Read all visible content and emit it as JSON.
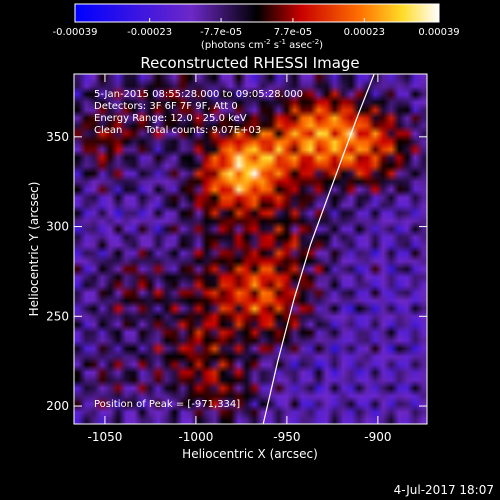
{
  "colorbar": {
    "tick_labels": [
      "-0.00039",
      "-0.00023",
      "-7.7e-05",
      "7.7e-05",
      "0.00023",
      "0.00039"
    ],
    "ticks": [
      -0.00039,
      -0.00023,
      -7.7e-05,
      7.7e-05,
      0.00023,
      0.00039
    ],
    "range": [
      -0.00039,
      0.00039
    ],
    "units_prefix": "(photons cm",
    "units_sup1": "-2",
    "units_mid": " s",
    "units_sup2": "-1",
    "units_suffix": " asec",
    "units_sup3": "-2",
    "units_close": ")"
  },
  "chart_data": {
    "type": "heatmap",
    "title": "Reconstructed RHESSI Image",
    "xlabel": "Heliocentric X (arcsec)",
    "ylabel": "Heliocentric Y (arcsec)",
    "xlim": [
      -1067,
      -873
    ],
    "ylim": [
      190,
      385
    ],
    "x_ticks": [
      -1050,
      -1000,
      -950,
      -900
    ],
    "y_ticks": [
      200,
      250,
      300,
      350
    ],
    "x_tick_labels": [
      "-1050",
      "-1000",
      "-950",
      "-900"
    ],
    "y_tick_labels": [
      "200",
      "250",
      "300",
      "350"
    ],
    "annotations": [
      "5-Jan-2015 08:55:28.000 to 09:05:28.000",
      "Detectors: 3F 6F 7F 9F, Att 0",
      "Energy Range: 12.0 - 25.0 keV",
      "Clean",
      "Total counts: 9.07E+03"
    ],
    "peak_label": "Position of Peak = [-971,334]",
    "peak": [
      -971,
      334
    ],
    "limb_curve_x": [
      -963,
      -955,
      -946,
      -937,
      -928,
      -919,
      -911,
      -902
    ],
    "limb_curve_y": [
      190,
      225,
      260,
      290,
      315,
      340,
      362,
      385
    ],
    "sources": [
      {
        "x": -971,
        "y": 334,
        "v": 0.00039
      },
      {
        "x": -935,
        "y": 352,
        "v": 0.00031
      },
      {
        "x": -905,
        "y": 346,
        "v": 0.00027
      },
      {
        "x": -990,
        "y": 315,
        "v": 0.00012
      },
      {
        "x": -985,
        "y": 268,
        "v": 0.00016
      },
      {
        "x": -960,
        "y": 258,
        "v": 0.00022
      },
      {
        "x": -1000,
        "y": 232,
        "v": 0.00014
      },
      {
        "x": -985,
        "y": 208,
        "v": 0.00012
      },
      {
        "x": -1050,
        "y": 350,
        "v": 0.00015
      },
      {
        "x": -1035,
        "y": 265,
        "v": 0.00011
      },
      {
        "x": -1045,
        "y": 218,
        "v": 8e-05
      },
      {
        "x": -948,
        "y": 292,
        "v": 0.00014
      },
      {
        "x": -1010,
        "y": 370,
        "v": 0.00012
      }
    ]
  },
  "footer": {
    "date_stamp": "4-Jul-2017 18:07"
  }
}
